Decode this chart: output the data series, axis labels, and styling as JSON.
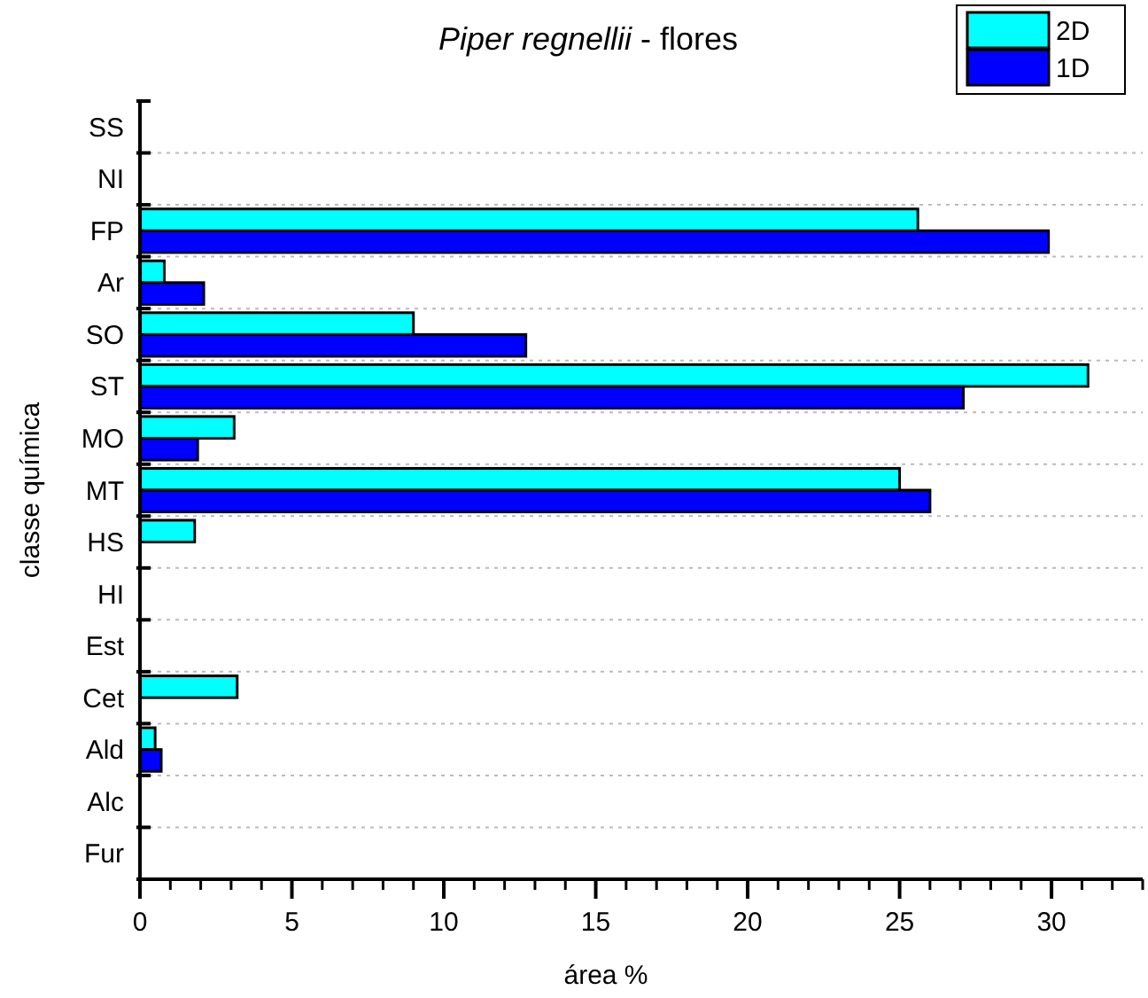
{
  "chart_data": {
    "type": "bar",
    "orientation": "horizontal",
    "title": "Piper regnellii - flores",
    "xlabel": "área %",
    "ylabel": "classe química",
    "categories": [
      "SS",
      "NI",
      "FP",
      "Ar",
      "SO",
      "ST",
      "MO",
      "MT",
      "HS",
      "HI",
      "Est",
      "Cet",
      "Ald",
      "Alc",
      "Fur"
    ],
    "series": [
      {
        "name": "2D",
        "color": "#00ffff",
        "values": [
          null,
          null,
          25.6,
          0.8,
          9.0,
          31.2,
          3.1,
          25.0,
          1.8,
          null,
          null,
          3.2,
          0.5,
          null,
          null
        ]
      },
      {
        "name": "1D",
        "color": "#0000ff",
        "values": [
          null,
          null,
          29.9,
          2.1,
          12.7,
          27.1,
          1.9,
          26.0,
          null,
          null,
          null,
          null,
          0.7,
          null,
          null
        ]
      }
    ],
    "xlim": [
      0,
      33
    ],
    "xticks": [
      0,
      5,
      10,
      15,
      20,
      25,
      30
    ],
    "grid": "y",
    "legend": "top right"
  }
}
